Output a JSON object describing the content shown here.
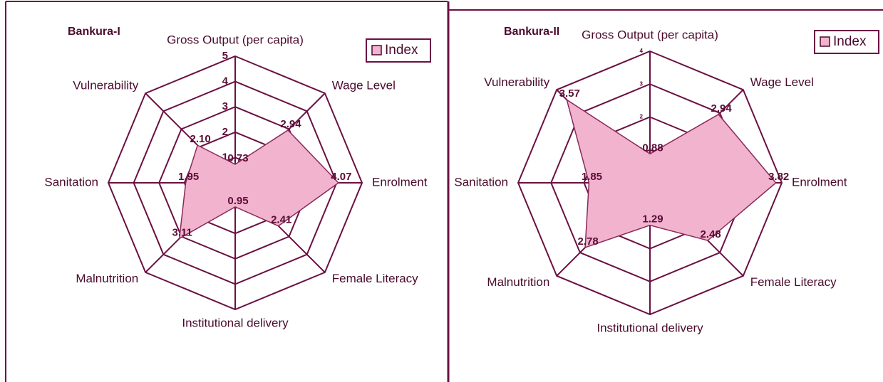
{
  "chart_data": [
    {
      "type": "radar",
      "title": "Bankura-I",
      "categories": [
        "Gross Output (per capita)",
        "Wage Level",
        "Enrolment",
        "Female Literacy",
        "Institutional delivery",
        "Malnutrition",
        "Sanitation",
        "Vulnerability"
      ],
      "series": [
        {
          "name": "Index",
          "color": "#f2b3cf",
          "values": [
            0.73,
            2.94,
            4.07,
            2.41,
            0.95,
            3.11,
            1.95,
            2.1
          ],
          "value_labels": [
            "0.73",
            "2.94",
            "4.07",
            "2.41",
            "0.95",
            "3.11",
            "1.95",
            "2.10"
          ]
        }
      ],
      "rlim": [
        0,
        5
      ],
      "rticks": [
        0,
        1,
        2,
        3,
        4,
        5
      ],
      "legend": "upper right",
      "grid_color": "#6b1043"
    },
    {
      "type": "radar",
      "title": "Bankura-II",
      "categories": [
        "Gross Output (per capita)",
        "Wage Level",
        "Enrolment",
        "Female Literacy",
        "Institutional delivery",
        "Malnutrition",
        "Sanitation",
        "Vulnerability"
      ],
      "series": [
        {
          "name": "Index",
          "color": "#f2b3cf",
          "values": [
            0.88,
            2.94,
            3.82,
            2.48,
            1.29,
            2.78,
            1.85,
            3.57
          ]
        }
      ],
      "rlim": [
        0,
        4
      ],
      "rticks": [
        0,
        1,
        2,
        3,
        4
      ],
      "legend": "upper right",
      "grid_color": "#6b1043"
    }
  ]
}
